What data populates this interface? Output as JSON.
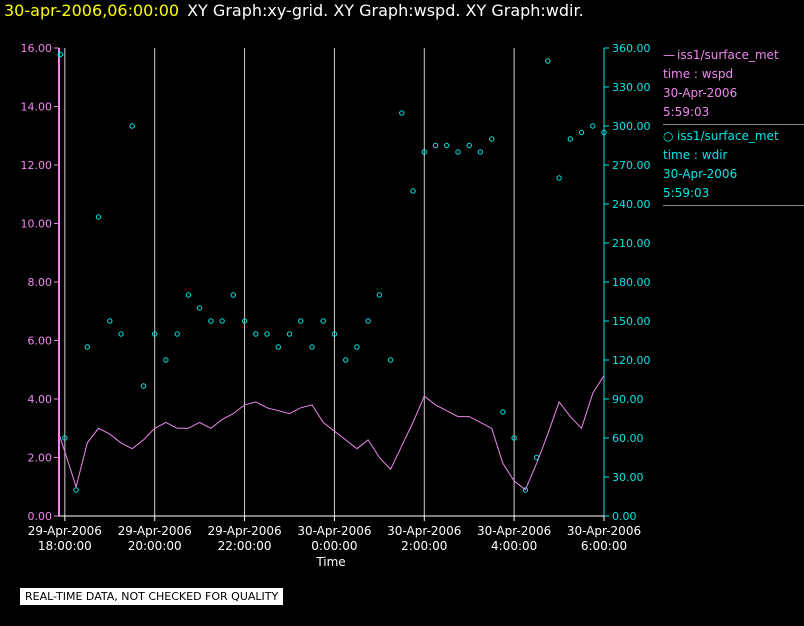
{
  "header": {
    "timestamp": "30-apr-2006,06:00:00",
    "graphs": "XY Graph:xy-grid.  XY Graph:wspd.  XY Graph:wdir."
  },
  "legend": {
    "wspd": {
      "name": "iss1/surface_met",
      "line2": "time : wspd",
      "line3": "30-Apr-2006",
      "line4": "5:59:03"
    },
    "wdir": {
      "name": "iss1/surface_met",
      "line2": "time : wdir",
      "line3": "30-Apr-2006",
      "line4": "5:59:03"
    }
  },
  "footer": {
    "note": "REAL-TIME DATA, NOT CHECKED FOR QUALITY"
  },
  "chart_data": {
    "type": "line",
    "xlabel": "Time",
    "x_range_hours": [
      17.87,
      30.0
    ],
    "x_ticks": [
      {
        "date": "29-Apr-2006",
        "time": "18:00:00",
        "hour": 18
      },
      {
        "date": "29-Apr-2006",
        "time": "20:00:00",
        "hour": 20
      },
      {
        "date": "29-Apr-2006",
        "time": "22:00:00",
        "hour": 22
      },
      {
        "date": "30-Apr-2006",
        "time": "0:00:00",
        "hour": 24
      },
      {
        "date": "30-Apr-2006",
        "time": "2:00:00",
        "hour": 26
      },
      {
        "date": "30-Apr-2006",
        "time": "4:00:00",
        "hour": 28
      },
      {
        "date": "30-Apr-2006",
        "time": "6:00:00",
        "hour": 30
      }
    ],
    "left_axis": {
      "min": 0,
      "max": 16,
      "color": "#ee88ee",
      "ticks": [
        "0.00",
        "2.00",
        "4.00",
        "6.00",
        "8.00",
        "10.00",
        "12.00",
        "14.00",
        "16.00"
      ]
    },
    "right_axis": {
      "min": 0,
      "max": 360,
      "color": "#00e6e6",
      "ticks": [
        "0.00",
        "30.00",
        "60.00",
        "90.00",
        "120.00",
        "150.00",
        "180.00",
        "210.00",
        "240.00",
        "270.00",
        "300.00",
        "330.00",
        "360.00"
      ]
    },
    "grid": "vertical",
    "legend_position": "right",
    "series": [
      {
        "name": "iss1/surface_met",
        "label": "time : wspd",
        "axis": "left",
        "style": "line",
        "color": "#ee88ee",
        "note": "approximate trace (hour, m/s)",
        "points": [
          [
            17.87,
            2.8
          ],
          [
            18.0,
            2.2
          ],
          [
            18.25,
            1.0
          ],
          [
            18.5,
            2.5
          ],
          [
            18.75,
            3.0
          ],
          [
            19.0,
            2.8
          ],
          [
            19.25,
            2.5
          ],
          [
            19.5,
            2.3
          ],
          [
            19.75,
            2.6
          ],
          [
            20.0,
            3.0
          ],
          [
            20.25,
            3.2
          ],
          [
            20.5,
            3.0
          ],
          [
            20.75,
            3.0
          ],
          [
            21.0,
            3.2
          ],
          [
            21.25,
            3.0
          ],
          [
            21.5,
            3.3
          ],
          [
            21.75,
            3.5
          ],
          [
            22.0,
            3.8
          ],
          [
            22.25,
            3.9
          ],
          [
            22.5,
            3.7
          ],
          [
            22.75,
            3.6
          ],
          [
            23.0,
            3.5
          ],
          [
            23.25,
            3.7
          ],
          [
            23.5,
            3.8
          ],
          [
            23.75,
            3.2
          ],
          [
            24.0,
            2.9
          ],
          [
            24.25,
            2.6
          ],
          [
            24.5,
            2.3
          ],
          [
            24.75,
            2.6
          ],
          [
            25.0,
            2.0
          ],
          [
            25.25,
            1.6
          ],
          [
            25.5,
            2.4
          ],
          [
            25.75,
            3.2
          ],
          [
            26.0,
            4.1
          ],
          [
            26.25,
            3.8
          ],
          [
            26.5,
            3.6
          ],
          [
            26.75,
            3.4
          ],
          [
            27.0,
            3.4
          ],
          [
            27.25,
            3.2
          ],
          [
            27.5,
            3.0
          ],
          [
            27.75,
            1.8
          ],
          [
            28.0,
            1.2
          ],
          [
            28.25,
            0.9
          ],
          [
            28.5,
            1.8
          ],
          [
            28.75,
            2.8
          ],
          [
            29.0,
            3.9
          ],
          [
            29.25,
            3.4
          ],
          [
            29.5,
            3.0
          ],
          [
            29.75,
            4.2
          ],
          [
            30.0,
            4.8
          ]
        ]
      },
      {
        "name": "iss1/surface_met",
        "label": "time : wdir",
        "axis": "right",
        "style": "scatter",
        "color": "#00e6e6",
        "note": "approximate trend (hour, degrees)",
        "points": [
          [
            17.9,
            355
          ],
          [
            18.0,
            60
          ],
          [
            18.25,
            20
          ],
          [
            18.5,
            130
          ],
          [
            18.75,
            230
          ],
          [
            19.0,
            150
          ],
          [
            19.25,
            140
          ],
          [
            19.5,
            300
          ],
          [
            19.75,
            100
          ],
          [
            20.0,
            140
          ],
          [
            20.25,
            120
          ],
          [
            20.5,
            140
          ],
          [
            20.75,
            170
          ],
          [
            21.0,
            160
          ],
          [
            21.25,
            150
          ],
          [
            21.5,
            150
          ],
          [
            21.75,
            170
          ],
          [
            22.0,
            150
          ],
          [
            22.25,
            140
          ],
          [
            22.5,
            140
          ],
          [
            22.75,
            130
          ],
          [
            23.0,
            140
          ],
          [
            23.25,
            150
          ],
          [
            23.5,
            130
          ],
          [
            23.75,
            150
          ],
          [
            24.0,
            140
          ],
          [
            24.25,
            120
          ],
          [
            24.5,
            130
          ],
          [
            24.75,
            150
          ],
          [
            25.0,
            170
          ],
          [
            25.25,
            120
          ],
          [
            25.5,
            310
          ],
          [
            25.75,
            250
          ],
          [
            26.0,
            280
          ],
          [
            26.25,
            285
          ],
          [
            26.5,
            285
          ],
          [
            26.75,
            280
          ],
          [
            27.0,
            285
          ],
          [
            27.25,
            280
          ],
          [
            27.5,
            290
          ],
          [
            27.75,
            80
          ],
          [
            28.0,
            60
          ],
          [
            28.25,
            20
          ],
          [
            28.5,
            45
          ],
          [
            28.75,
            350
          ],
          [
            29.0,
            260
          ],
          [
            29.25,
            290
          ],
          [
            29.5,
            295
          ],
          [
            29.75,
            300
          ],
          [
            30.0,
            295
          ]
        ]
      }
    ]
  }
}
